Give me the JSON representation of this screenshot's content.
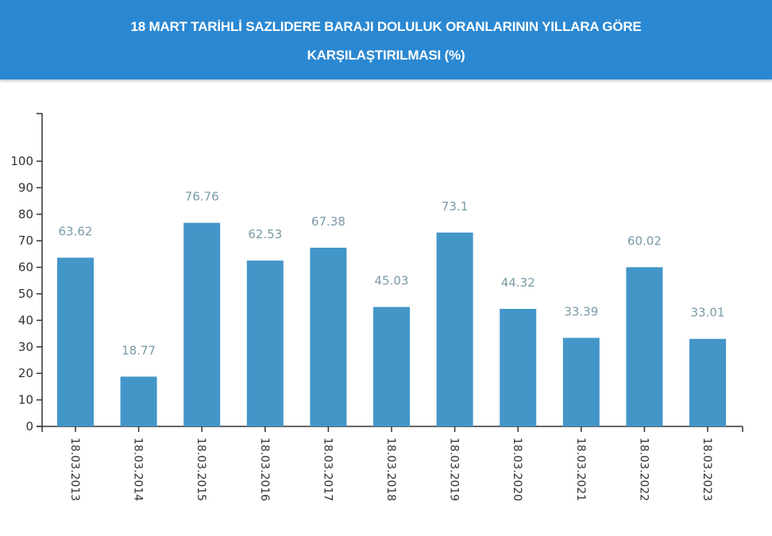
{
  "header": {
    "title_line1": "18 MART TARİHLİ SAZLIDERE BARAJI DOLULUK ORANLARININ YILLARA GÖRE",
    "title_line2": "KARŞILAŞTIRILMASI (%)",
    "background_color": "#2a88d2"
  },
  "chart_data": {
    "type": "bar",
    "title": "18 MART TARİHLİ SAZLIDERE BARAJI DOLULUK ORANLARININ YILLARA GÖRE KARŞILAŞTIRILMASI (%)",
    "categories": [
      "18.03.2013",
      "18.03.2014",
      "18.03.2015",
      "18.03.2016",
      "18.03.2017",
      "18.03.2018",
      "18.03.2019",
      "18.03.2020",
      "18.03.2021",
      "18.03.2022",
      "18.03.2023"
    ],
    "values": [
      63.62,
      18.77,
      76.76,
      62.53,
      67.38,
      45.03,
      73.1,
      44.32,
      33.39,
      60.02,
      33.01
    ],
    "value_labels": [
      "63.62",
      "18.77",
      "76.76",
      "62.53",
      "67.38",
      "45.03",
      "73.1",
      "44.32",
      "33.39",
      "60.02",
      "33.01"
    ],
    "xlabel": "",
    "ylabel": "",
    "ylim": [
      0,
      100
    ],
    "yticks": [
      0,
      10,
      20,
      30,
      40,
      50,
      60,
      70,
      80,
      90,
      100
    ],
    "grid": false,
    "legend": null,
    "bar_color": "#4396c8",
    "label_color": "#7a9aa6",
    "x_label_rotation": 90
  }
}
